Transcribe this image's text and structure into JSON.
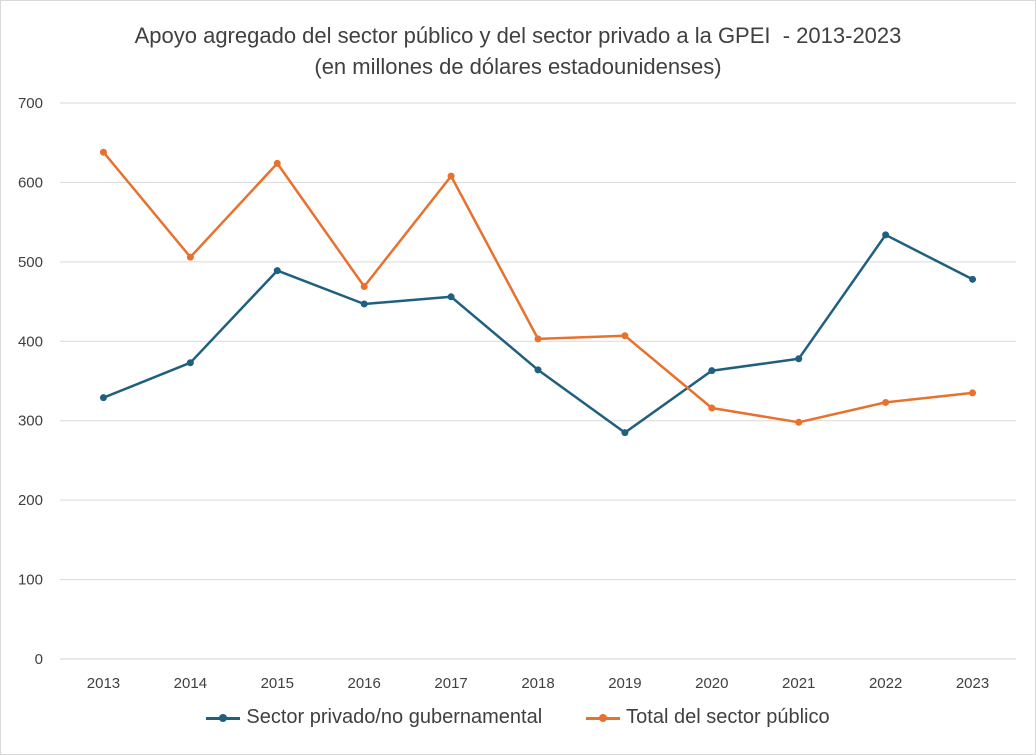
{
  "chart_data": {
    "type": "line",
    "title_line1": "Apoyo agregado del sector público y del sector privado a la GPEI  - 2013-2023",
    "title_line2": "(en millones de dólares estadounidenses)",
    "xlabel": "",
    "ylabel": "",
    "categories": [
      "2013",
      "2014",
      "2015",
      "2016",
      "2017",
      "2018",
      "2019",
      "2020",
      "2021",
      "2022",
      "2023"
    ],
    "ylim": [
      0,
      700
    ],
    "yticks": [
      0,
      100,
      200,
      300,
      400,
      500,
      600,
      700
    ],
    "grid": true,
    "legend_position": "bottom",
    "series": [
      {
        "name": "Sector privado/no gubernamental",
        "color": "#1f5f7f",
        "values": [
          329,
          373,
          489,
          447,
          456,
          364,
          285,
          363,
          378,
          534,
          478
        ]
      },
      {
        "name": "Total del sector público",
        "color": "#e8712e",
        "values": [
          638,
          506,
          624,
          469,
          608,
          403,
          407,
          316,
          298,
          323,
          335
        ]
      }
    ]
  }
}
